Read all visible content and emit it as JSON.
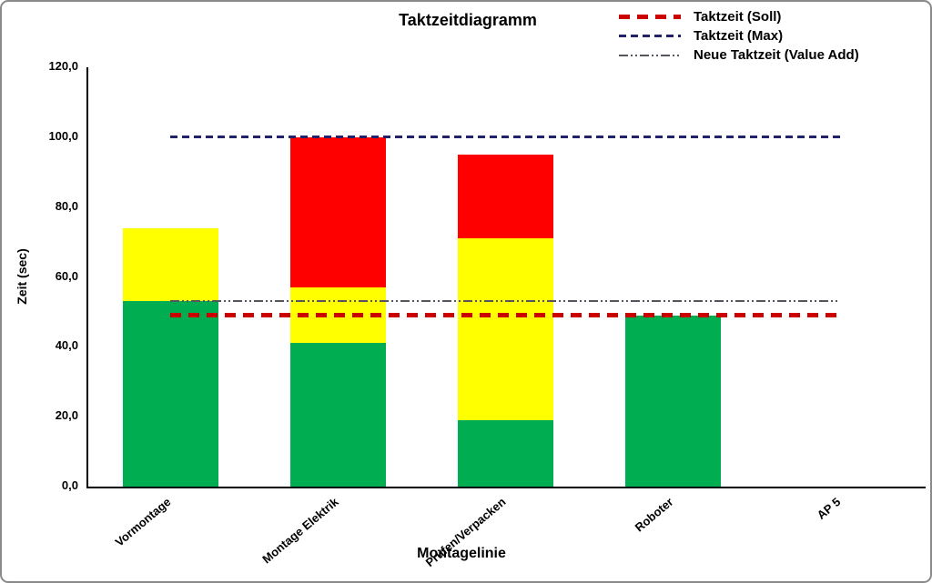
{
  "title": "Taktzeitdiagramm",
  "legend": {
    "position": "top-right",
    "items": [
      {
        "label": "Taktzeit (Soll)",
        "style": "soll",
        "color": "#cc0000"
      },
      {
        "label": "Taktzeit (Max)",
        "style": "max",
        "color": "#22226a"
      },
      {
        "label": "Neue Taktzeit (Value Add)",
        "style": "valueadd",
        "color": "#55555e"
      }
    ]
  },
  "chart_data": {
    "type": "bar",
    "stacked": true,
    "title": "Taktzeitdiagramm",
    "xlabel": "Montagelinie",
    "ylabel": "Zeit (sec)",
    "ylim": [
      0,
      120
    ],
    "ytick_step": 20,
    "ytick_labels": [
      "0,0",
      "20,0",
      "40,0",
      "60,0",
      "80,0",
      "100,0",
      "120,0"
    ],
    "grid": false,
    "legend_position": "top-right",
    "categories": [
      "Vormontage",
      "Montage Elektrik",
      "Prüfen/Verpacken",
      "Roboter",
      "AP 5"
    ],
    "series": [
      {
        "name": "green",
        "color": "#00ad50",
        "values": [
          53,
          41,
          19,
          49,
          0
        ]
      },
      {
        "name": "yellow",
        "color": "#ffff00",
        "values": [
          21,
          16,
          52,
          0,
          0
        ]
      },
      {
        "name": "red",
        "color": "#ff0000",
        "values": [
          0,
          43,
          24,
          0,
          0
        ]
      }
    ],
    "ref_lines": [
      {
        "name": "Taktzeit (Soll)",
        "value": 49,
        "color": "#cc0000",
        "style": "soll"
      },
      {
        "name": "Taktzeit (Max)",
        "value": 100,
        "color": "#22226a",
        "style": "max"
      },
      {
        "name": "Neue Taktzeit (Value Add)",
        "value": 53,
        "color": "#55555e",
        "style": "valueadd"
      }
    ]
  }
}
